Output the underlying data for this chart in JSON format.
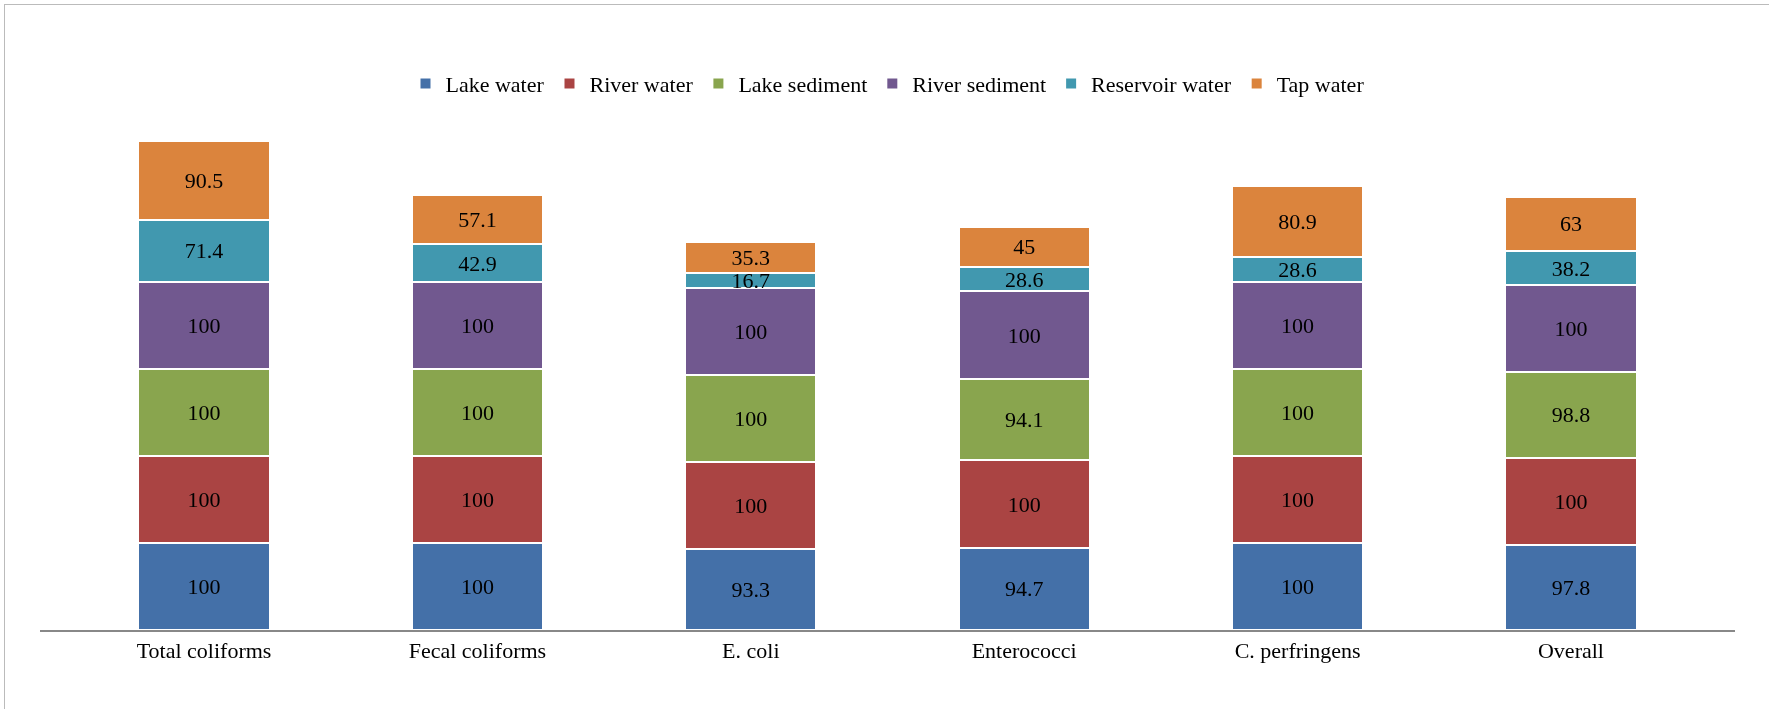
{
  "chart_data": {
    "type": "bar",
    "stacked": true,
    "data_labels": true,
    "grid": false,
    "legend": "top",
    "tick_labels": "x",
    "categories": [
      "Total coliforms",
      "Fecal coliforms",
      "E. coli",
      "Enterococci",
      "C. perfringens",
      "Overall"
    ],
    "series": [
      {
        "name": "Lake water",
        "color": "#4470a8",
        "values": [
          100,
          100,
          93.3,
          94.7,
          100,
          97.8
        ]
      },
      {
        "name": "River water",
        "color": "#aa4443",
        "values": [
          100,
          100,
          100,
          100,
          100,
          100
        ]
      },
      {
        "name": "Lake sediment",
        "color": "#89a54e",
        "values": [
          100,
          100,
          100,
          94.1,
          100,
          98.8
        ]
      },
      {
        "name": "River sediment",
        "color": "#71588f",
        "values": [
          100,
          100,
          100,
          100,
          100,
          100
        ]
      },
      {
        "name": "Reservoir water",
        "color": "#4198af",
        "values": [
          71.4,
          42.9,
          16.7,
          28.6,
          28.6,
          38.2
        ]
      },
      {
        "name": "Tap water",
        "color": "#db843d",
        "values": [
          90.5,
          57.1,
          35.3,
          45,
          80.9,
          63
        ]
      }
    ]
  }
}
